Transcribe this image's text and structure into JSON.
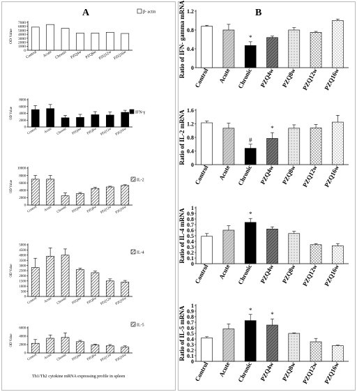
{
  "panel_a_label": "A",
  "panel_b_label": "B",
  "caption": "Th1/Th2 cytokine mRNA expressing profile in spleen",
  "colors": {
    "ink": "#000000",
    "bar_white": "#ffffff",
    "bar_black": "#000000",
    "frame": "#b9b9b9"
  },
  "chart_data": [
    {
      "panel": "A",
      "type": "bar",
      "legend": "β- actin",
      "legend_swatch": "white",
      "ylabel": "OD Value",
      "ylim": [
        0,
        7000
      ],
      "yticks": [
        0,
        1000,
        2000,
        3000,
        4000,
        5000,
        6000,
        7000
      ],
      "categories": [
        "Control",
        "Acute",
        "Chronic",
        "PZQ4w",
        "PZQ8w",
        "PZQ12w",
        "PZQ16w"
      ],
      "values": [
        5800,
        6450,
        5500,
        4300,
        4300,
        4500,
        4200
      ],
      "errors": []
    },
    {
      "panel": "A",
      "type": "bar",
      "legend": "IFN-γ",
      "legend_swatch": "black",
      "ylabel": "OD Value",
      "ylim": [
        0,
        8000
      ],
      "yticks": [
        0,
        2000,
        4000,
        6000,
        8000
      ],
      "categories": [
        "Control",
        "Acute",
        "Chronic",
        "PZQ4w",
        "PZQ8w",
        "PZQ12w",
        "PZQ16w"
      ],
      "values": [
        5100,
        5400,
        2700,
        2800,
        3600,
        3500,
        4300
      ],
      "errors": [
        1200,
        1200,
        700,
        900,
        900,
        900,
        600
      ]
    },
    {
      "panel": "A",
      "type": "bar",
      "legend": "IL-2",
      "legend_swatch": "hatch",
      "ylabel": "OD Value",
      "ylim": [
        0,
        10000
      ],
      "yticks": [
        0,
        2000,
        4000,
        6000,
        8000,
        10000
      ],
      "categories": [
        "Control",
        "Acute",
        "Chronic",
        "PZQ4w",
        "PZQ8w",
        "PZQ12w",
        "PZQ16w"
      ],
      "values": [
        7000,
        7000,
        2500,
        3100,
        4500,
        4900,
        5300
      ],
      "errors": [
        1000,
        1000,
        800,
        300,
        300,
        200,
        200
      ]
    },
    {
      "panel": "A",
      "type": "bar",
      "legend": "IL-4",
      "legend_swatch": "hatch",
      "ylabel": "OD Value",
      "ylim": [
        0,
        5000
      ],
      "yticks": [
        0,
        500,
        1000,
        1500,
        2000,
        2500,
        3000,
        3500,
        4000,
        4500,
        5000
      ],
      "categories": [
        "Control",
        "Acute",
        "Chronic",
        "PZQ4w",
        "PZQ8w",
        "PZQ12w",
        "PZQ16w"
      ],
      "values": [
        2800,
        3900,
        4000,
        2600,
        2300,
        1500,
        1400
      ],
      "errors": [
        900,
        800,
        600,
        150,
        150,
        200,
        150
      ]
    },
    {
      "panel": "A",
      "type": "bar",
      "legend": "IL-5",
      "legend_swatch": "hatch",
      "ylabel": "OD Value",
      "ylim": [
        0,
        6000
      ],
      "yticks": [
        0,
        2000,
        4000,
        6000
      ],
      "categories": [
        "Control",
        "Acute",
        "Chronic",
        "PZQ4w",
        "PZQ8w",
        "PZQ12w",
        "PZQ16w"
      ],
      "values": [
        2300,
        3500,
        3700,
        2700,
        1900,
        1700,
        1400
      ],
      "errors": [
        900,
        800,
        1100,
        300,
        200,
        300,
        300
      ]
    },
    {
      "panel": "B",
      "type": "bar",
      "ylabel": "Ratio of IFN- gamma mRNA",
      "ylim": [
        0,
        1.2
      ],
      "yticks": [
        "0",
        "0.4",
        "0.8",
        "1.2"
      ],
      "categories": [
        "Control",
        "Acute",
        "Chronic",
        "PZQ4w",
        "PZQ8w",
        "PZQ12w",
        "PZQ16w"
      ],
      "values": [
        0.88,
        0.8,
        0.47,
        0.64,
        0.8,
        0.75,
        1.0
      ],
      "errors": [
        0.02,
        0.12,
        0.08,
        0.03,
        0.05,
        0.02,
        0.03
      ],
      "markers": [
        "",
        "",
        "*",
        "",
        "",
        "",
        ""
      ]
    },
    {
      "panel": "B",
      "type": "bar",
      "ylabel": "Ratio of IL-2 mRNA",
      "ylim": [
        0,
        1.6
      ],
      "yticks": [
        "0",
        "0.4",
        "0.8",
        "1.2",
        "1.6"
      ],
      "categories": [
        "Control",
        "Acute",
        "Chronic",
        "PZQ4w",
        "PZQ8w",
        "PZQ12w",
        "PZQ16w"
      ],
      "values": [
        1.23,
        1.07,
        0.48,
        0.77,
        1.07,
        1.08,
        1.25
      ],
      "errors": [
        0.05,
        0.15,
        0.12,
        0.17,
        0.1,
        0.1,
        0.2
      ],
      "markers": [
        "",
        "",
        "#",
        "*",
        "",
        "",
        ""
      ]
    },
    {
      "panel": "B",
      "type": "bar",
      "ylabel": "Ratio of IL-4 mRNA",
      "ylim": [
        0,
        1
      ],
      "yticks": [
        "0",
        "0.1",
        "0.2",
        "0.3",
        "0.4",
        "0.5",
        "0.6",
        "0.7",
        "0.8",
        "0.9",
        "1"
      ],
      "categories": [
        "Control",
        "Acute",
        "Chronic",
        "PZQ4w",
        "PZQ8w",
        "PZQ12w",
        "PZQ16w"
      ],
      "values": [
        0.49,
        0.6,
        0.74,
        0.62,
        0.54,
        0.34,
        0.32
      ],
      "errors": [
        0.05,
        0.08,
        0.07,
        0.04,
        0.04,
        0.02,
        0.04
      ],
      "markers": [
        "",
        "",
        "*",
        "",
        "",
        "",
        ""
      ]
    },
    {
      "panel": "B",
      "type": "bar",
      "ylabel": "Ratio of IL-5 mRNA",
      "ylim": [
        0,
        1
      ],
      "yticks": [
        "0",
        "0.1",
        "0.2",
        "0.3",
        "0.4",
        "0.5",
        "0.6",
        "0.7",
        "0.8",
        "0.9",
        "1"
      ],
      "categories": [
        "Control",
        "Acute",
        "Chronic",
        "PZQ4w",
        "PZQ8w",
        "PZQ12w",
        "PZQ16w"
      ],
      "values": [
        0.42,
        0.58,
        0.73,
        0.65,
        0.5,
        0.35,
        0.28
      ],
      "errors": [
        0.02,
        0.09,
        0.11,
        0.11,
        0.01,
        0.06,
        0.01
      ],
      "markers": [
        "",
        "",
        "*",
        "*",
        "",
        "",
        ""
      ]
    }
  ]
}
